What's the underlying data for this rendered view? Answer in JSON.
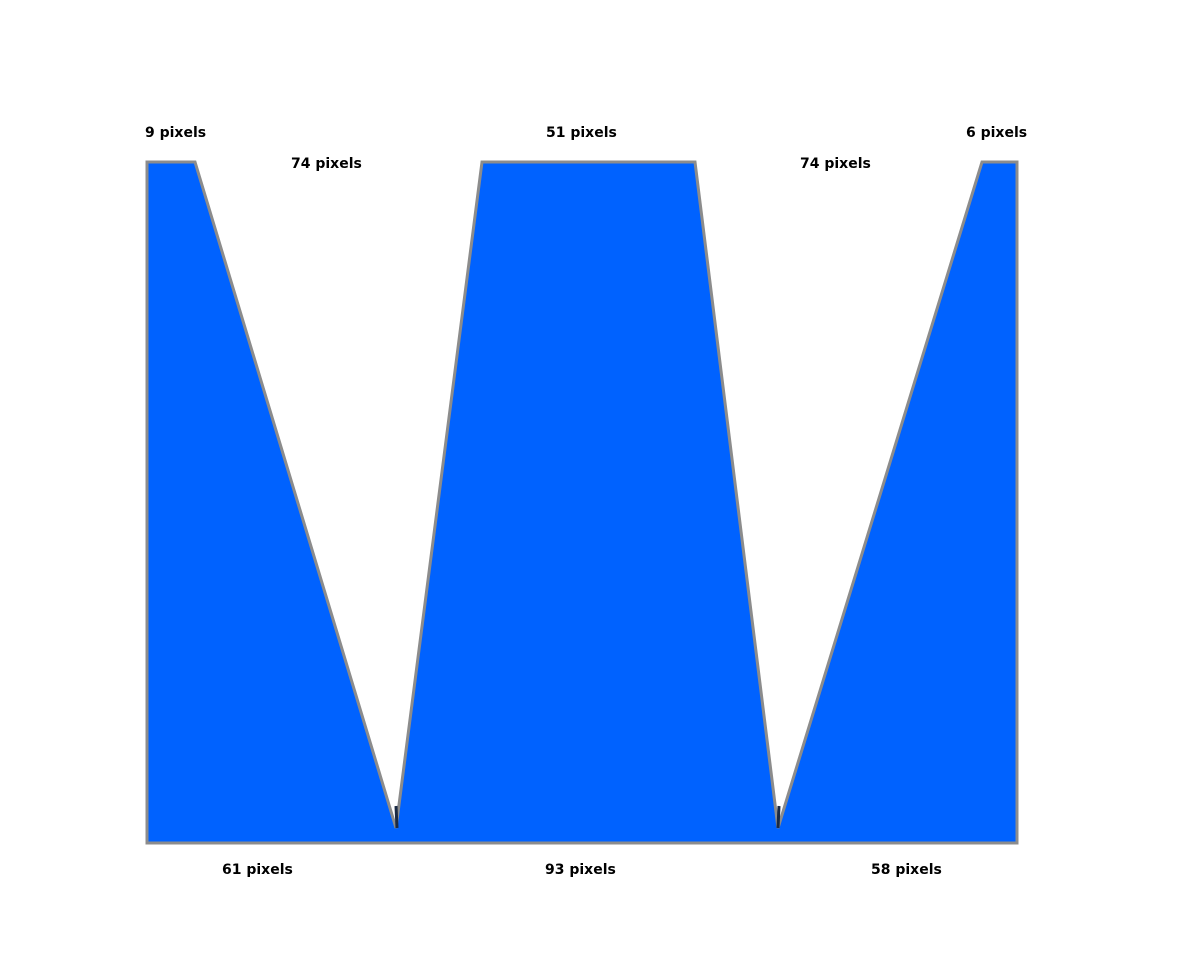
{
  "colors": {
    "fill": "#0062ff",
    "outline": "#8c8c8c",
    "background": "#ffffff"
  },
  "labels": {
    "top_left": "9 pixels",
    "top_center": "51 pixels",
    "top_right": "6 pixels",
    "gap_left": "74 pixels",
    "gap_right": "74 pixels",
    "bottom_left": "61 pixels",
    "bottom_center": "93 pixels",
    "bottom_right": "58 pixels"
  }
}
